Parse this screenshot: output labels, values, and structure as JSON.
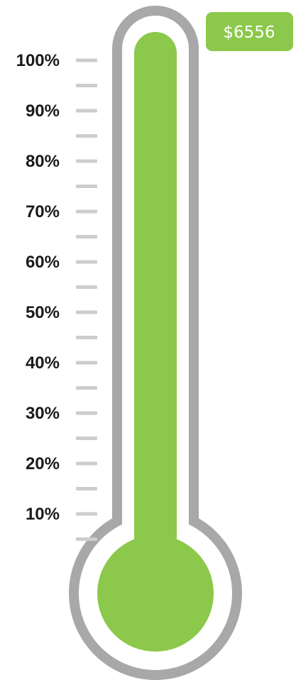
{
  "chart_data": {
    "type": "thermometer",
    "value_label": "$6556",
    "fill_fraction": 1.0,
    "ylim": [
      0,
      100
    ],
    "tick_labels": [
      "100%",
      "90%",
      "80%",
      "70%",
      "60%",
      "50%",
      "40%",
      "30%",
      "20%",
      "10%"
    ],
    "tick_values": [
      100,
      90,
      80,
      70,
      60,
      50,
      40,
      30,
      20,
      10
    ],
    "minor_tick_values": [
      95,
      85,
      75,
      65,
      55,
      45,
      35,
      25,
      15,
      5
    ],
    "colors": {
      "fill": "#8cc84b",
      "outline": "#a8a8a8",
      "tick": "#cdcdcd",
      "badge": "#8cc84b",
      "label": "#1a1a1a"
    }
  }
}
